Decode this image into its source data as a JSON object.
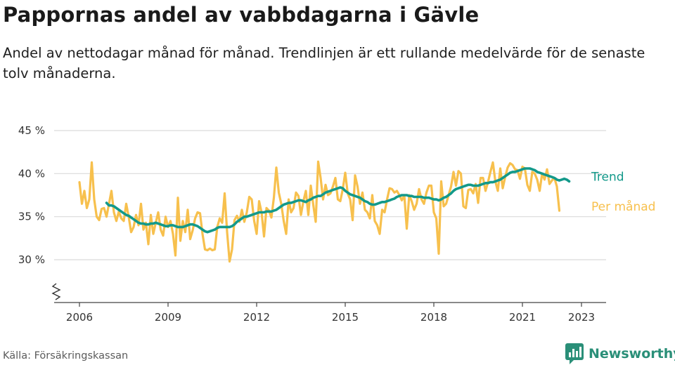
{
  "header": {
    "title": "Pappornas andel av vabbdagarna i Gävle",
    "subtitle": "Andel av nettodagar månad för månad. Trendlinjen är ett rullande medelvärde för de senaste tolv månaderna."
  },
  "footer": {
    "source": "Källa: Försäkringskassan",
    "brand": "Newsworthy",
    "brand_icon": "bar-chart-logo-icon",
    "brand_color": "#2a8f78"
  },
  "chart_data": {
    "type": "line",
    "y_tick_labels": [
      "45 %",
      "40 %",
      "35 %",
      "30 %"
    ],
    "y_ticks": [
      45,
      40,
      35,
      30
    ],
    "ylim": [
      25,
      45
    ],
    "y_axis_break": true,
    "x_tick_labels": [
      "2006",
      "2009",
      "2012",
      "2015",
      "2018",
      "2021",
      "2023"
    ],
    "x_ticks": [
      2006,
      2009,
      2012,
      2015,
      2018,
      2021,
      2023
    ],
    "xlim": [
      2005.7,
      2024.1
    ],
    "grid": true,
    "series": [
      {
        "name": "Per månad",
        "color": "#f7c04d",
        "start": "2006-01",
        "values": [
          39.0,
          36.5,
          38.0,
          36.0,
          37.0,
          41.3,
          37.0,
          35.0,
          34.6,
          35.9,
          36.0,
          35.0,
          36.5,
          38.0,
          35.5,
          34.5,
          35.6,
          34.8,
          34.5,
          36.5,
          35.0,
          33.2,
          33.8,
          35.2,
          34.0,
          36.5,
          33.5,
          34.3,
          31.8,
          35.2,
          33.0,
          34.3,
          35.5,
          33.5,
          32.8,
          35.0,
          33.8,
          34.5,
          33.0,
          30.5,
          37.2,
          32.2,
          34.5,
          33.2,
          35.8,
          32.4,
          33.4,
          34.8,
          35.5,
          35.4,
          33.0,
          31.2,
          31.1,
          31.3,
          31.1,
          31.2,
          33.8,
          34.8,
          34.3,
          37.7,
          33.2,
          29.8,
          31.2,
          34.6,
          35.1,
          34.4,
          35.8,
          34.4,
          35.5,
          37.3,
          37.0,
          34.5,
          33.0,
          36.8,
          35.5,
          32.7,
          36.0,
          35.7,
          34.9,
          37.2,
          40.7,
          37.8,
          36.5,
          34.5,
          33.0,
          37.0,
          35.5,
          36.0,
          37.8,
          37.4,
          35.2,
          36.8,
          38.0,
          35.2,
          38.6,
          36.4,
          34.4,
          41.4,
          39.5,
          37.0,
          38.7,
          37.5,
          37.7,
          38.5,
          39.5,
          37.0,
          36.8,
          38.2,
          40.1,
          37.7,
          37.0,
          34.6,
          39.8,
          38.5,
          36.5,
          37.8,
          35.8,
          35.5,
          34.8,
          37.5,
          34.5,
          34.0,
          33.0,
          35.8,
          35.5,
          37.0,
          38.3,
          38.2,
          37.8,
          38.0,
          37.5,
          36.9,
          37.5,
          33.6,
          37.5,
          36.8,
          35.8,
          36.5,
          38.2,
          37.0,
          36.5,
          37.8,
          38.6,
          38.6,
          35.5,
          34.8,
          30.7,
          39.1,
          36.2,
          36.5,
          37.5,
          38.5,
          40.2,
          38.6,
          40.3,
          40.0,
          36.2,
          36.0,
          38.1,
          38.2,
          37.7,
          38.8,
          36.6,
          39.5,
          39.5,
          38.0,
          39.0,
          40.2,
          41.3,
          39.1,
          38.0,
          40.6,
          38.3,
          39.6,
          40.7,
          41.2,
          41.0,
          40.5,
          40.4,
          39.4,
          40.8,
          40.6,
          38.7,
          38.0,
          40.2,
          40.0,
          39.3,
          38.0,
          40.0,
          39.3,
          40.5,
          38.8,
          39.2,
          39.5,
          38.5,
          35.7
        ]
      },
      {
        "name": "Trend",
        "color": "#13998a",
        "start": "2006-12",
        "values": [
          36.6,
          36.3,
          36.3,
          36.2,
          36.0,
          35.8,
          35.6,
          35.4,
          35.2,
          35.1,
          34.9,
          34.7,
          34.5,
          34.3,
          34.2,
          34.2,
          34.1,
          34.1,
          34.2,
          34.2,
          34.3,
          34.2,
          34.1,
          34.0,
          33.9,
          33.9,
          34.0,
          34.0,
          33.9,
          33.8,
          33.8,
          33.8,
          33.9,
          34.0,
          34.1,
          34.1,
          34.0,
          33.9,
          33.7,
          33.5,
          33.3,
          33.2,
          33.3,
          33.4,
          33.5,
          33.7,
          33.8,
          33.8,
          33.8,
          33.8,
          33.8,
          33.9,
          34.1,
          34.4,
          34.6,
          34.8,
          35.0,
          35.0,
          35.1,
          35.2,
          35.3,
          35.4,
          35.5,
          35.5,
          35.5,
          35.6,
          35.6,
          35.6,
          35.7,
          35.8,
          36.0,
          36.2,
          36.4,
          36.5,
          36.6,
          36.6,
          36.7,
          36.8,
          36.9,
          36.9,
          36.8,
          36.7,
          36.9,
          37.0,
          37.2,
          37.3,
          37.4,
          37.4,
          37.6,
          37.8,
          37.9,
          38.0,
          38.1,
          38.2,
          38.3,
          38.4,
          38.3,
          38.0,
          37.8,
          37.6,
          37.5,
          37.4,
          37.3,
          37.2,
          37.0,
          36.8,
          36.7,
          36.5,
          36.4,
          36.4,
          36.5,
          36.6,
          36.7,
          36.7,
          36.8,
          36.9,
          37.0,
          37.1,
          37.3,
          37.4,
          37.5,
          37.5,
          37.5,
          37.4,
          37.4,
          37.3,
          37.3,
          37.3,
          37.3,
          37.2,
          37.2,
          37.2,
          37.1,
          37.0,
          37.0,
          36.9,
          37.0,
          37.2,
          37.3,
          37.5,
          37.7,
          38.0,
          38.2,
          38.3,
          38.4,
          38.5,
          38.6,
          38.7,
          38.7,
          38.6,
          38.6,
          38.6,
          38.7,
          38.8,
          38.9,
          38.9,
          39.0,
          39.0,
          39.1,
          39.2,
          39.3,
          39.5,
          39.7,
          39.9,
          40.1,
          40.2,
          40.2,
          40.3,
          40.4,
          40.5,
          40.6,
          40.6,
          40.6,
          40.5,
          40.4,
          40.2,
          40.1,
          40.0,
          39.9,
          39.8,
          39.7,
          39.6,
          39.5,
          39.3,
          39.2,
          39.3,
          39.4,
          39.3,
          39.1
        ]
      }
    ]
  }
}
